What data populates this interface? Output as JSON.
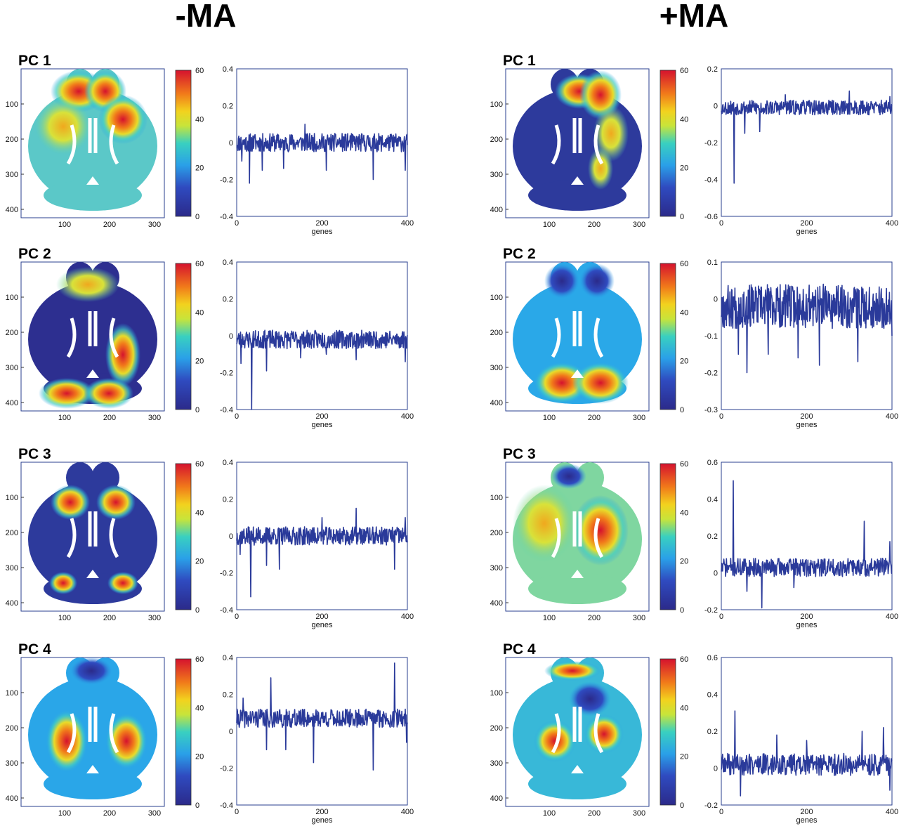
{
  "colors": {
    "trace": "#2a3a9a",
    "frame": "#2a3f8f",
    "brain_low": "#2b2f8f",
    "brain_high": "#e0142a"
  },
  "icons": [
    "brain-map-image"
  ],
  "columns": [
    {
      "title": "-MA",
      "panels": [
        {
          "label": "PC 1"
        },
        {
          "label": "PC 2"
        },
        {
          "label": "PC 3"
        },
        {
          "label": "PC 4"
        }
      ]
    },
    {
      "title": "+MA",
      "panels": [
        {
          "label": "PC 1"
        },
        {
          "label": "PC 2"
        },
        {
          "label": "PC 3"
        },
        {
          "label": "PC 4"
        }
      ]
    }
  ],
  "chart_data": [
    {
      "type": "line",
      "group": "-MA",
      "panel": "PC 1",
      "xlabel": "genes",
      "xlim": [
        0,
        400
      ],
      "ylim": [
        -0.4,
        0.4
      ],
      "yticks": [
        "0.4",
        "0.2",
        "0",
        "-0.2",
        "-0.4"
      ],
      "xticks": [
        "0",
        "200",
        "400"
      ],
      "baseline": 0.0,
      "noise": 0.05,
      "seed": 11,
      "spikes": [
        [
          12,
          -0.1
        ],
        [
          30,
          -0.22
        ],
        [
          60,
          -0.15
        ],
        [
          110,
          -0.14
        ],
        [
          160,
          0.1
        ],
        [
          210,
          -0.15
        ],
        [
          320,
          -0.2
        ],
        [
          395,
          -0.15
        ]
      ],
      "map": {
        "cmap_ticks": [
          "60",
          "40",
          "20",
          "0"
        ],
        "xticks": [
          "100",
          "200",
          "300"
        ],
        "yticks": [
          "100",
          "200",
          "300",
          "400"
        ],
        "value_range": [
          0,
          60
        ]
      }
    },
    {
      "type": "line",
      "group": "-MA",
      "panel": "PC 2",
      "xlabel": "genes",
      "xlim": [
        0,
        400
      ],
      "ylim": [
        -0.4,
        0.4
      ],
      "yticks": [
        "0.4",
        "0.2",
        "0",
        "-0.2",
        "-0.4"
      ],
      "xticks": [
        "0",
        "200",
        "400"
      ],
      "baseline": -0.02,
      "noise": 0.05,
      "seed": 23,
      "spikes": [
        [
          10,
          -0.15
        ],
        [
          35,
          -0.4
        ],
        [
          70,
          -0.19
        ],
        [
          150,
          -0.12
        ],
        [
          210,
          -0.1
        ],
        [
          280,
          -0.13
        ],
        [
          395,
          -0.14
        ]
      ],
      "map": {
        "cmap_ticks": [
          "60",
          "40",
          "20",
          "0"
        ],
        "xticks": [
          "100",
          "200",
          "300"
        ],
        "yticks": [
          "100",
          "200",
          "300",
          "400"
        ],
        "value_range": [
          0,
          60
        ]
      }
    },
    {
      "type": "line",
      "group": "-MA",
      "panel": "PC 3",
      "xlabel": "genes",
      "xlim": [
        0,
        400
      ],
      "ylim": [
        -0.4,
        0.4
      ],
      "yticks": [
        "0.4",
        "0.2",
        "0",
        "-0.2",
        "-0.4"
      ],
      "xticks": [
        "0",
        "200",
        "400"
      ],
      "baseline": 0.0,
      "noise": 0.05,
      "seed": 37,
      "spikes": [
        [
          8,
          -0.1
        ],
        [
          33,
          -0.33
        ],
        [
          70,
          -0.16
        ],
        [
          100,
          -0.18
        ],
        [
          200,
          0.1
        ],
        [
          280,
          0.15
        ],
        [
          370,
          -0.18
        ],
        [
          395,
          0.1
        ]
      ],
      "map": {
        "cmap_ticks": [
          "60",
          "40",
          "20",
          "0"
        ],
        "xticks": [
          "100",
          "200",
          "300"
        ],
        "yticks": [
          "100",
          "200",
          "300",
          "400"
        ],
        "value_range": [
          0,
          60
        ]
      }
    },
    {
      "type": "line",
      "group": "-MA",
      "panel": "PC 4",
      "xlabel": "genes",
      "xlim": [
        0,
        400
      ],
      "ylim": [
        -0.4,
        0.4
      ],
      "yticks": [
        "0.4",
        "0.2",
        "0",
        "-0.2",
        "-0.4"
      ],
      "xticks": [
        "0",
        "200",
        "400"
      ],
      "baseline": 0.07,
      "noise": 0.05,
      "seed": 41,
      "spikes": [
        [
          15,
          0.18
        ],
        [
          70,
          -0.1
        ],
        [
          80,
          0.29
        ],
        [
          115,
          -0.1
        ],
        [
          180,
          -0.17
        ],
        [
          320,
          -0.21
        ],
        [
          370,
          0.37
        ],
        [
          398,
          -0.06
        ]
      ],
      "map": {
        "cmap_ticks": [
          "60",
          "40",
          "20",
          "0"
        ],
        "xticks": [
          "100",
          "200",
          "300"
        ],
        "yticks": [
          "100",
          "200",
          "300",
          "400"
        ],
        "value_range": [
          0,
          60
        ]
      }
    },
    {
      "type": "line",
      "group": "+MA",
      "panel": "PC 1",
      "xlabel": "genes",
      "xlim": [
        0,
        400
      ],
      "ylim": [
        -0.6,
        0.2
      ],
      "yticks": [
        "0.2",
        "0",
        "-0.2",
        "-0.4",
        "-0.6"
      ],
      "xticks": [
        "0",
        "200",
        "400"
      ],
      "baseline": -0.01,
      "noise": 0.04,
      "seed": 53,
      "spikes": [
        [
          30,
          -0.42
        ],
        [
          55,
          -0.15
        ],
        [
          90,
          -0.14
        ],
        [
          150,
          0.06
        ],
        [
          300,
          0.08
        ],
        [
          395,
          0.05
        ]
      ],
      "map": {
        "cmap_ticks": [
          "60",
          "40",
          "20",
          "0"
        ],
        "xticks": [
          "100",
          "200",
          "300"
        ],
        "yticks": [
          "100",
          "200",
          "300",
          "400"
        ],
        "value_range": [
          0,
          60
        ]
      }
    },
    {
      "type": "line",
      "group": "+MA",
      "panel": "PC 2",
      "xlabel": "genes",
      "xlim": [
        0,
        400
      ],
      "ylim": [
        -0.3,
        0.1
      ],
      "yticks": [
        "0.1",
        "0",
        "-0.1",
        "-0.2",
        "-0.3"
      ],
      "xticks": [
        "0",
        "200",
        "400"
      ],
      "baseline": -0.02,
      "noise": 0.06,
      "seed": 67,
      "spikes": [
        [
          40,
          -0.15
        ],
        [
          60,
          -0.2
        ],
        [
          110,
          -0.15
        ],
        [
          180,
          -0.16
        ],
        [
          230,
          -0.18
        ],
        [
          320,
          -0.17
        ],
        [
          400,
          -0.1
        ]
      ],
      "map": {
        "cmap_ticks": [
          "60",
          "40",
          "20",
          "0"
        ],
        "xticks": [
          "100",
          "200",
          "300"
        ],
        "yticks": [
          "100",
          "200",
          "300",
          "400"
        ],
        "value_range": [
          0,
          60
        ]
      }
    },
    {
      "type": "line",
      "group": "+MA",
      "panel": "PC 3",
      "xlabel": "genes",
      "xlim": [
        0,
        400
      ],
      "ylim": [
        -0.2,
        0.6
      ],
      "yticks": [
        "0.6",
        "0.4",
        "0.2",
        "0",
        "-0.2"
      ],
      "xticks": [
        "0",
        "200",
        "400"
      ],
      "baseline": 0.03,
      "noise": 0.05,
      "seed": 71,
      "spikes": [
        [
          28,
          0.5
        ],
        [
          60,
          -0.1
        ],
        [
          95,
          -0.19
        ],
        [
          170,
          -0.08
        ],
        [
          335,
          0.28
        ],
        [
          395,
          0.17
        ]
      ],
      "map": {
        "cmap_ticks": [
          "60",
          "40",
          "20",
          "0"
        ],
        "xticks": [
          "100",
          "200",
          "300"
        ],
        "yticks": [
          "100",
          "200",
          "300",
          "400"
        ],
        "value_range": [
          0,
          60
        ]
      }
    },
    {
      "type": "line",
      "group": "+MA",
      "panel": "PC 4",
      "xlabel": "genes",
      "xlim": [
        0,
        400
      ],
      "ylim": [
        -0.2,
        0.6
      ],
      "yticks": [
        "0.6",
        "0.4",
        "0.2",
        "0",
        "-0.2"
      ],
      "xticks": [
        "0",
        "200",
        "400"
      ],
      "baseline": 0.02,
      "noise": 0.06,
      "seed": 89,
      "spikes": [
        [
          32,
          0.31
        ],
        [
          45,
          -0.15
        ],
        [
          130,
          0.18
        ],
        [
          200,
          0.15
        ],
        [
          330,
          0.2
        ],
        [
          380,
          0.22
        ],
        [
          395,
          -0.12
        ]
      ],
      "map": {
        "cmap_ticks": [
          "60",
          "40",
          "20",
          "0"
        ],
        "xticks": [
          "100",
          "200",
          "300"
        ],
        "yticks": [
          "100",
          "200",
          "300",
          "400"
        ],
        "value_range": [
          0,
          60
        ]
      }
    }
  ]
}
